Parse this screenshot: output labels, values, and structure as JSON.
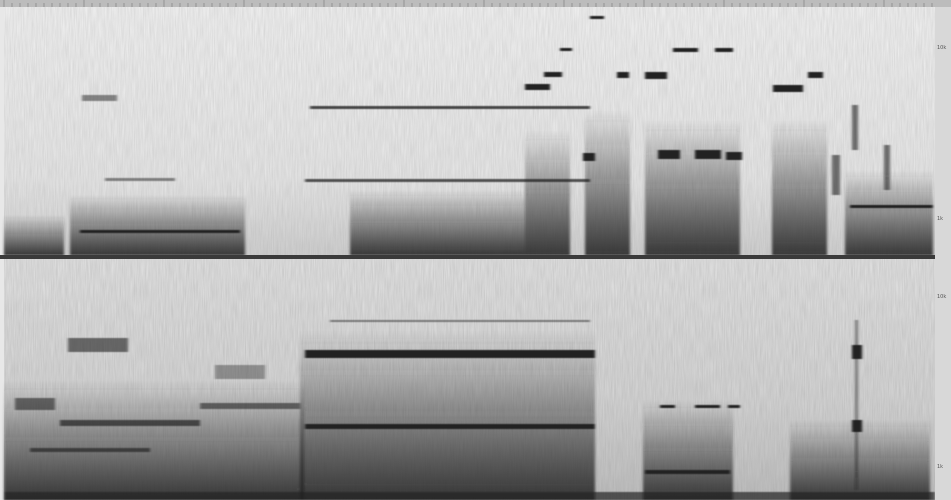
{
  "panels": [
    {
      "axis_labels": [
        "10k",
        "1k"
      ]
    },
    {
      "axis_labels": [
        "10k",
        "1k"
      ]
    }
  ]
}
